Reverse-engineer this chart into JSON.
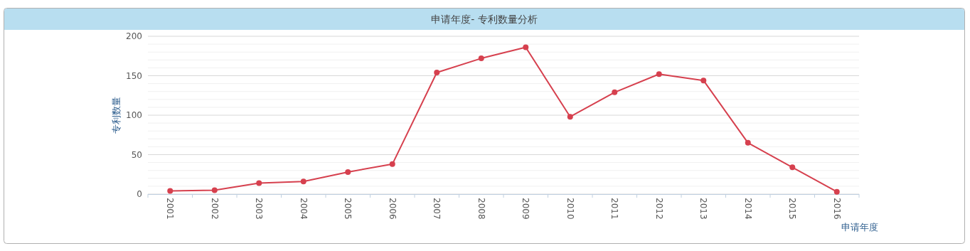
{
  "chart_data": {
    "type": "line",
    "title": "申请年度- 专利数量分析",
    "xlabel": "申请年度",
    "ylabel": "专利数量",
    "categories": [
      "2001",
      "2002",
      "2003",
      "2004",
      "2005",
      "2006",
      "2007",
      "2008",
      "2009",
      "2010",
      "2011",
      "2012",
      "2013",
      "2014",
      "2015",
      "2016"
    ],
    "series": [
      {
        "color": "#d6404e",
        "values": [
          4,
          5,
          14,
          16,
          28,
          38,
          154,
          172,
          186,
          98,
          129,
          152,
          144,
          65,
          34,
          3
        ]
      }
    ],
    "ylim": [
      0,
      200
    ],
    "yticks": [
      0,
      {
        "value": 10,
        "label": null
      },
      {
        "value": 20,
        "label": null
      },
      {
        "value": 30,
        "label": null
      },
      {
        "value": 40,
        "label": null
      },
      50,
      {
        "value": 60,
        "label": null
      },
      {
        "value": 70,
        "label": null
      },
      {
        "value": 80,
        "label": null
      },
      {
        "value": 90,
        "label": null
      },
      100,
      {
        "value": 110,
        "label": null
      },
      {
        "value": 120,
        "label": null
      },
      {
        "value": 130,
        "label": null
      },
      {
        "value": 140,
        "label": null
      },
      150,
      {
        "value": 160,
        "label": null
      },
      {
        "value": 170,
        "label": null
      },
      {
        "value": 180,
        "label": null
      },
      {
        "value": 190,
        "label": null
      },
      200
    ],
    "grid": "y",
    "marker": "circle",
    "line_style": "solid"
  }
}
